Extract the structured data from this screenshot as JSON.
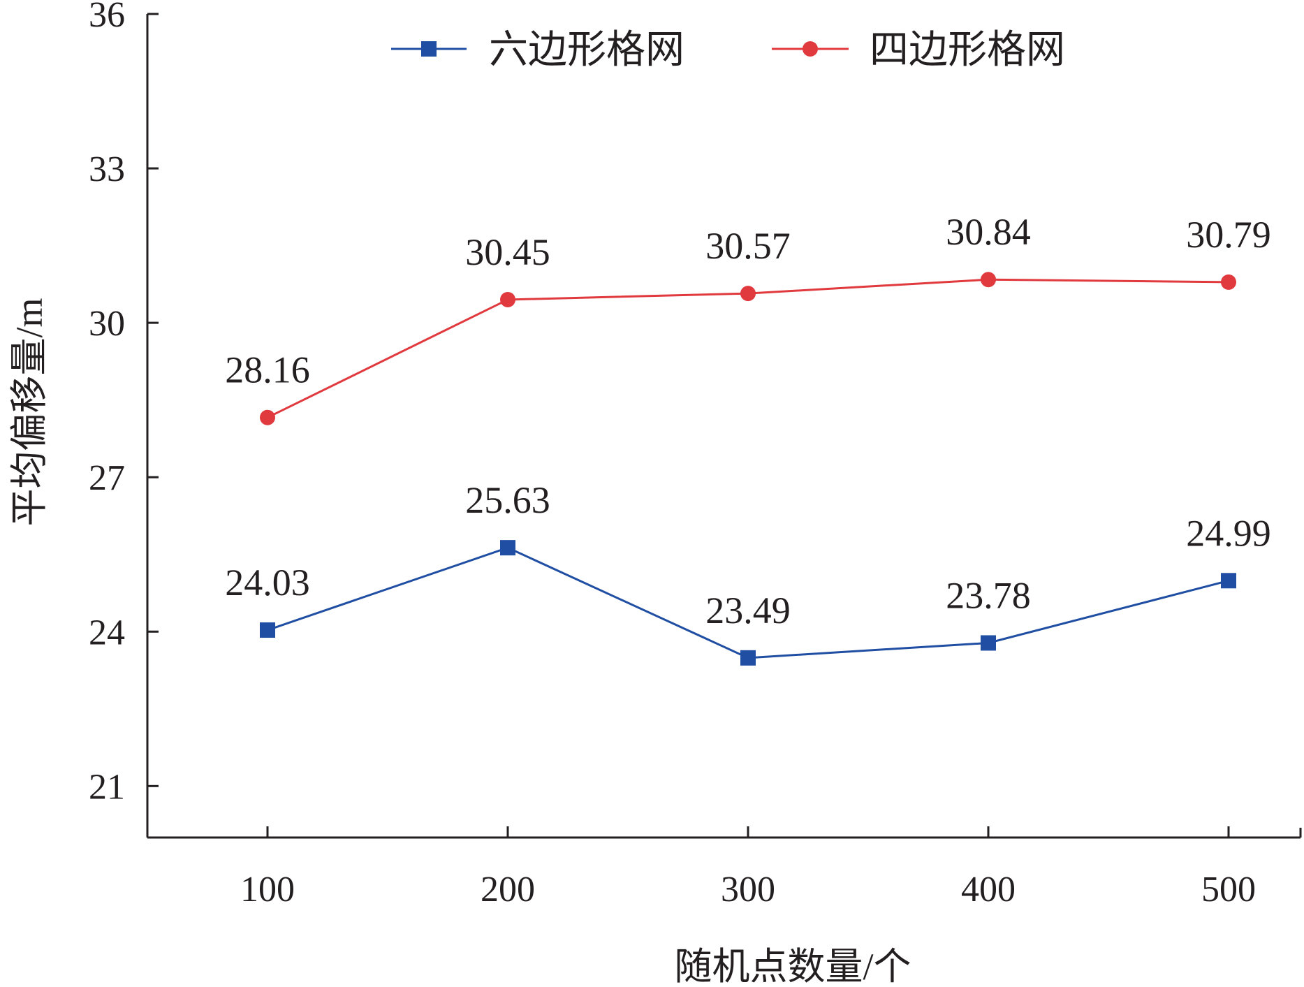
{
  "chart_data": {
    "type": "line",
    "title": "",
    "xlabel": "随机点数量/个",
    "ylabel": "平均偏移量/m",
    "categories": [
      "100",
      "200",
      "300",
      "400",
      "500"
    ],
    "yticks": [
      "21",
      "24",
      "27",
      "30",
      "33",
      "36"
    ],
    "ylim": [
      20,
      36
    ],
    "grid": false,
    "legend_position": "top",
    "series": [
      {
        "name": "六边形格网",
        "values": [
          24.03,
          25.63,
          23.49,
          23.78,
          24.99
        ],
        "labels": [
          "24.03",
          "25.63",
          "23.49",
          "23.78",
          "24.99"
        ],
        "color": "#1f4ea3",
        "marker": "square"
      },
      {
        "name": "四边形格网",
        "values": [
          28.16,
          30.45,
          30.57,
          30.84,
          30.79
        ],
        "labels": [
          "28.16",
          "30.45",
          "30.57",
          "30.84",
          "30.79"
        ],
        "color": "#e0393e",
        "marker": "circle"
      }
    ]
  }
}
